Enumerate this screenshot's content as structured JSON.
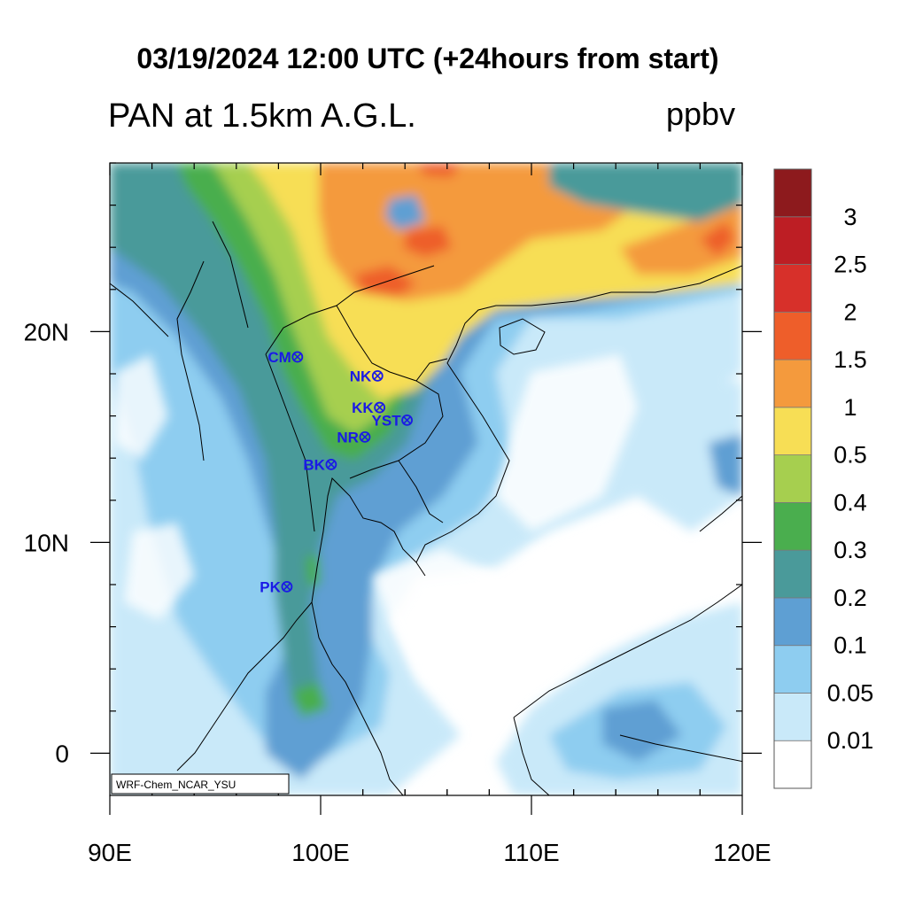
{
  "header": {
    "title": "03/19/2024 12:00 UTC (+24hours from start)",
    "subtitle": "PAN at 1.5km A.G.L.",
    "units": "ppbv"
  },
  "map": {
    "lon_range": [
      90,
      120
    ],
    "lat_range": [
      -2,
      28
    ],
    "x_ticks": [
      "90E",
      "100E",
      "110E",
      "120E"
    ],
    "y_ticks": [
      "20N",
      "10N",
      "0"
    ],
    "credit": "WRF-Chem_NCAR_YSU",
    "stations": [
      {
        "code": "CM",
        "lon": 98.9,
        "lat": 18.8
      },
      {
        "code": "NK",
        "lon": 102.7,
        "lat": 17.9
      },
      {
        "code": "KK",
        "lon": 102.8,
        "lat": 16.4
      },
      {
        "code": "YST",
        "lon": 104.1,
        "lat": 15.8
      },
      {
        "code": "NR",
        "lon": 102.1,
        "lat": 15.0
      },
      {
        "code": "BK",
        "lon": 100.5,
        "lat": 13.7
      },
      {
        "code": "PK",
        "lon": 98.4,
        "lat": 7.9
      }
    ]
  },
  "colorbar": {
    "labels": [
      "0.01",
      "0.05",
      "0.1",
      "0.2",
      "0.3",
      "0.4",
      "0.5",
      "1",
      "1.5",
      "2",
      "2.5",
      "3"
    ],
    "colors": [
      "#ffffff",
      "#c9e9f9",
      "#8ecdf0",
      "#5e9fd3",
      "#4a9a9a",
      "#4aae4e",
      "#a6cf4f",
      "#f7de55",
      "#f49a3d",
      "#ee5e2a",
      "#d7302a",
      "#bd1e24",
      "#8d1a1d"
    ]
  }
}
